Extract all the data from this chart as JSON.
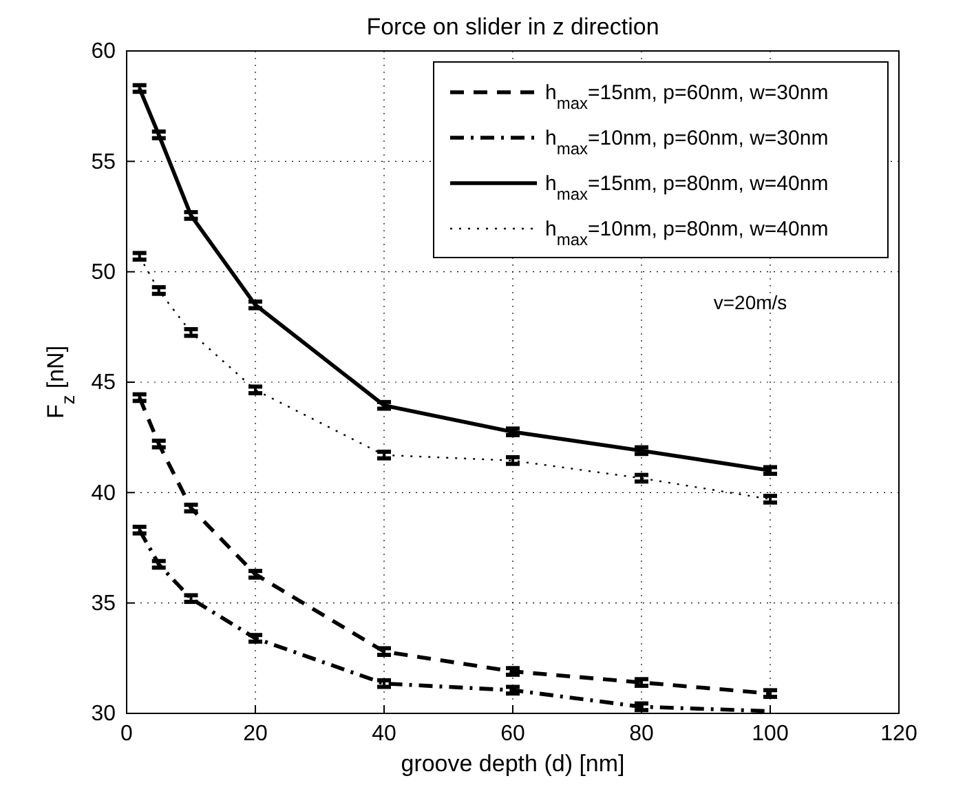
{
  "chart_data": {
    "type": "line",
    "title": "Force on slider in z direction",
    "xlabel": "groove depth (d) [nm]",
    "ylabel": "F$_{z}$ [nN]",
    "x": [
      2,
      5,
      10,
      20,
      40,
      60,
      80,
      100
    ],
    "xlim": [
      0,
      120
    ],
    "xticks": [
      0,
      20,
      40,
      60,
      80,
      100,
      120
    ],
    "ylim": [
      30,
      60
    ],
    "yticks": [
      30,
      35,
      40,
      45,
      50,
      55,
      60
    ],
    "grid": true,
    "legend": "top right",
    "marker": "none",
    "annotations": [
      "v=20m/s"
    ],
    "series": [
      {
        "name": "h$_{max}$=15nm, p=60nm, w=30nm",
        "color": "#000000",
        "line_style": "dashed",
        "values": [
          44.3,
          42.2,
          39.3,
          36.3,
          32.8,
          31.9,
          31.4,
          30.9
        ],
        "errors": [
          0.15,
          0.15,
          0.15,
          0.15,
          0.15,
          0.15,
          0.15,
          0.15
        ]
      },
      {
        "name": "h$_{max}$=10nm, p=60nm, w=30nm",
        "color": "#000000",
        "line_style": "dashdot",
        "values": [
          38.3,
          36.75,
          35.2,
          33.4,
          31.35,
          31.05,
          30.3,
          30.1
        ],
        "errors": [
          0.15,
          0.15,
          0.15,
          0.15,
          0.15,
          0.15,
          0.15,
          null
        ]
      },
      {
        "name": "h$_{max}$=15nm, p=80nm, w=40nm",
        "color": "#000000",
        "line_style": "solid",
        "values": [
          58.3,
          56.2,
          52.55,
          48.5,
          43.95,
          42.75,
          41.9,
          41.0
        ],
        "errors": [
          0.15,
          0.15,
          0.15,
          0.15,
          0.15,
          0.15,
          0.15,
          0.15
        ]
      },
      {
        "name": "h$_{max}$=10nm, p=80nm, w=40nm",
        "color": "#000000",
        "line_style": "dotted",
        "values": [
          50.7,
          49.15,
          47.25,
          44.65,
          41.7,
          41.45,
          40.65,
          39.7
        ],
        "errors": [
          0.15,
          0.15,
          0.15,
          0.15,
          0.15,
          0.15,
          0.15,
          0.15
        ]
      }
    ]
  }
}
